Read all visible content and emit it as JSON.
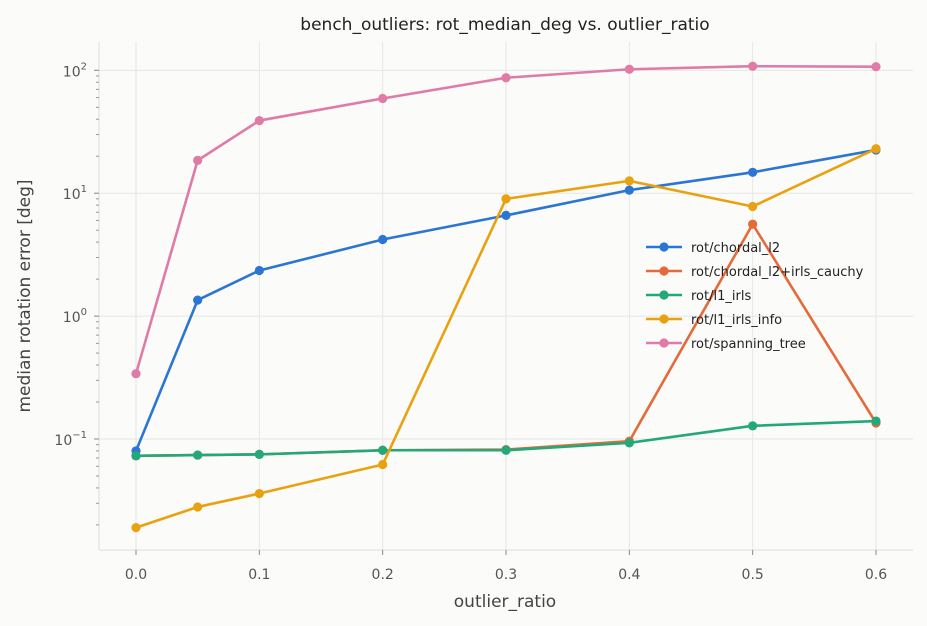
{
  "chart_data": {
    "type": "line",
    "title": "bench_outliers: rot_median_deg vs. outlier_ratio",
    "xlabel": "outlier_ratio",
    "ylabel": "median rotation error [deg]",
    "yscale": "log",
    "xlim": [
      -0.03,
      0.63
    ],
    "ylim": [
      0.0125,
      170
    ],
    "xticks": [
      0.0,
      0.1,
      0.2,
      0.3,
      0.4,
      0.5,
      0.6
    ],
    "xtick_labels": [
      "0.0",
      "0.1",
      "0.2",
      "0.3",
      "0.4",
      "0.5",
      "0.6"
    ],
    "yticks": [
      0.1,
      1,
      10,
      100
    ],
    "grid": true,
    "legend_position": "center-right",
    "x": [
      0.0,
      0.05,
      0.1,
      0.2,
      0.3,
      0.4,
      0.5,
      0.6
    ],
    "series": [
      {
        "name": "rot/chordal_l2",
        "color": "#2b76d2",
        "values": [
          0.08,
          1.35,
          2.35,
          4.2,
          6.6,
          10.6,
          14.8,
          22.5
        ]
      },
      {
        "name": "rot/chordal_l2+irls_cauchy",
        "color": "#e46a3a",
        "values": [
          0.073,
          0.074,
          0.075,
          0.081,
          0.082,
          0.096,
          5.6,
          0.135
        ]
      },
      {
        "name": "rot/l1_irls",
        "color": "#22a87a",
        "values": [
          0.073,
          0.074,
          0.075,
          0.081,
          0.081,
          0.093,
          0.128,
          0.14
        ]
      },
      {
        "name": "rot/l1_irls_info",
        "color": "#e9a20f",
        "values": [
          0.019,
          0.028,
          0.036,
          0.062,
          9.0,
          12.6,
          7.8,
          23.0
        ]
      },
      {
        "name": "rot/spanning_tree",
        "color": "#e07aa6",
        "values": [
          0.34,
          18.5,
          39.0,
          59.0,
          87.0,
          102.0,
          108.0,
          107.0
        ]
      }
    ]
  }
}
